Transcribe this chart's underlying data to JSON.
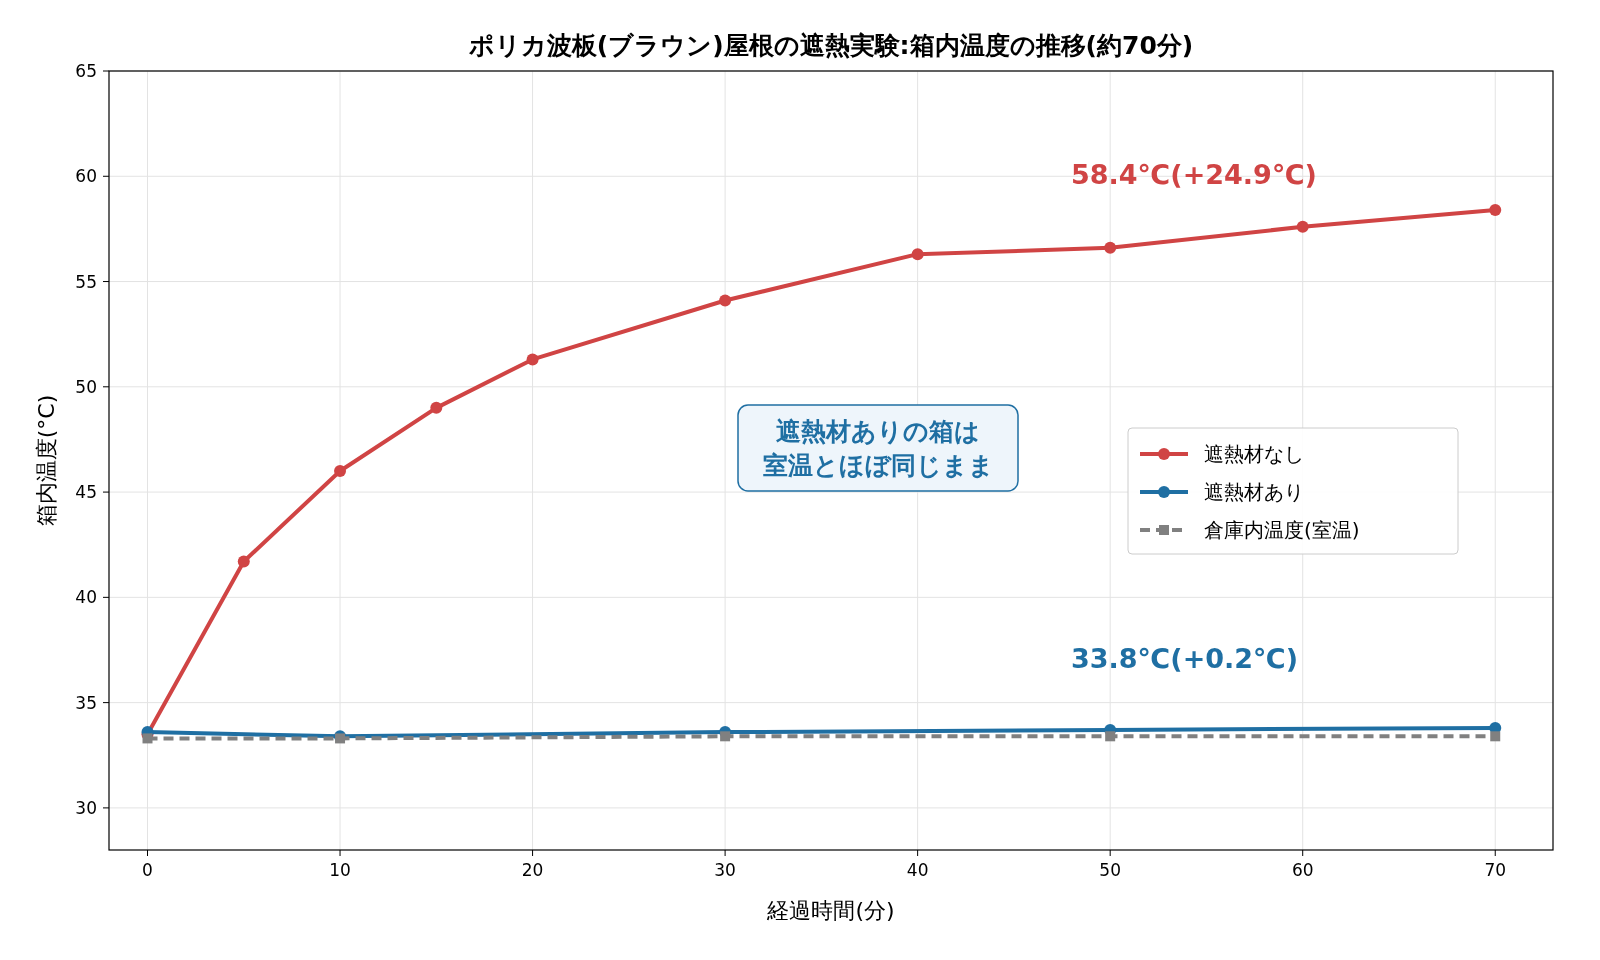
{
  "chart_data": {
    "type": "line",
    "title": "ポリカ波板(ブラウン)屋根の遮熱実験:箱内温度の推移(約70分)",
    "xlabel": "経過時間(分)",
    "ylabel": "箱内温度(°C)",
    "xlim": [
      -2,
      73
    ],
    "xticks": [
      0,
      10,
      20,
      30,
      40,
      50,
      60,
      70
    ],
    "ylim": [
      28,
      65
    ],
    "yticks": [
      30,
      35,
      40,
      45,
      50,
      55,
      60,
      65
    ],
    "grid": true,
    "legend": "right",
    "marker": "circle",
    "series": [
      {
        "name": "遮熱材なし",
        "color": "#d04444",
        "x": [
          0,
          5,
          10,
          15,
          20,
          30,
          40,
          50,
          60,
          70
        ],
        "values": [
          33.5,
          41.7,
          46.0,
          49.0,
          51.3,
          54.1,
          56.3,
          56.6,
          57.6,
          58.4
        ]
      },
      {
        "name": "遮熱材あり",
        "color": "#1f6fa3",
        "x": [
          0,
          10,
          30,
          50,
          70
        ],
        "values": [
          33.6,
          33.4,
          33.6,
          33.7,
          33.8
        ]
      },
      {
        "name": "倉庫内温度(室温)",
        "color": "#808080",
        "x": [
          0,
          10,
          30,
          50,
          70
        ],
        "values": [
          33.3,
          33.3,
          33.4,
          33.4,
          33.4
        ],
        "marker": "square",
        "line_style": "dashed"
      }
    ],
    "annotations": [
      "58.4℃(+24.9℃)",
      "33.8℃(+0.2℃)",
      "遮熱材ありの箱は室温とほぼ同じまま"
    ]
  }
}
